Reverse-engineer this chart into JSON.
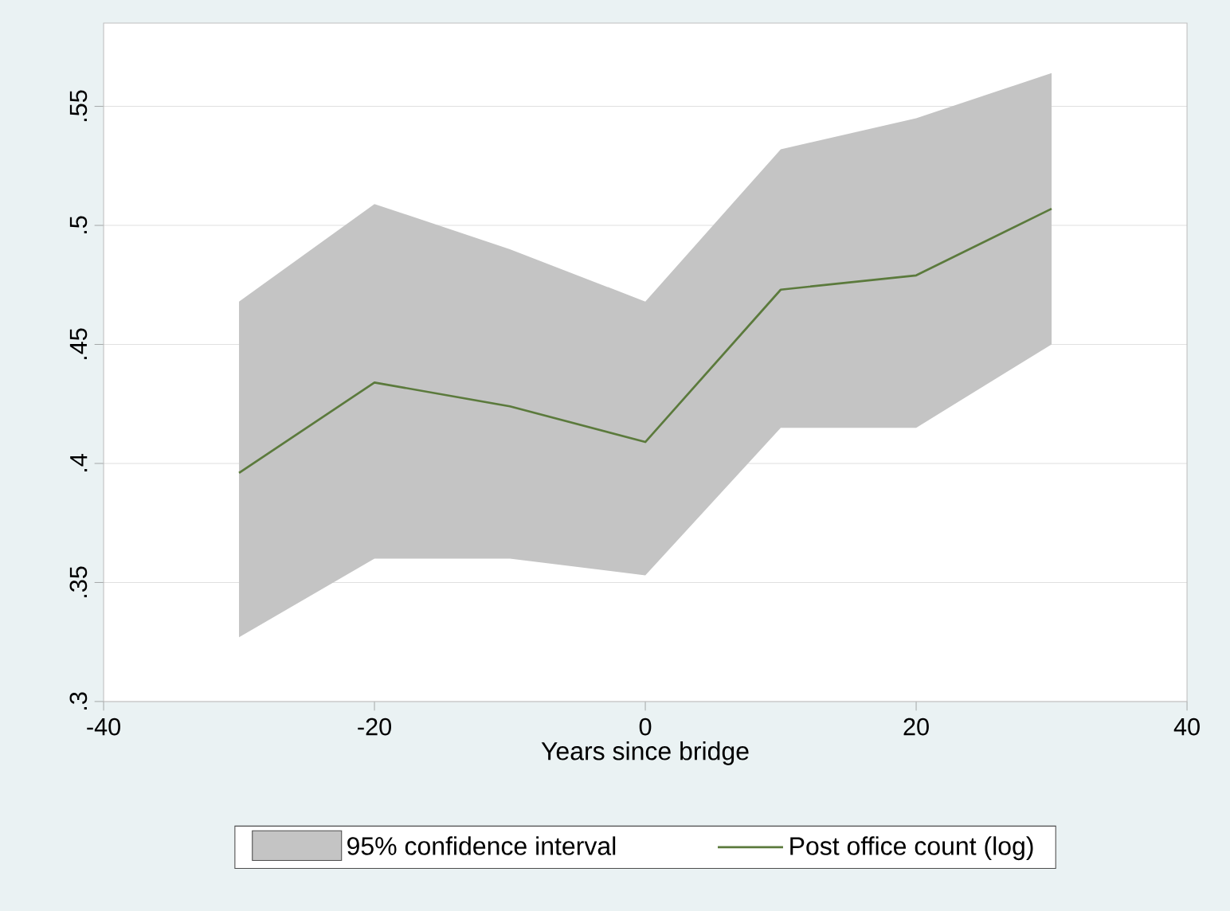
{
  "chart_data": {
    "type": "line",
    "xlabel": "Years since bridge",
    "annotations": [
      "95% confidence interval"
    ],
    "x": [
      -30,
      -20,
      -10,
      0,
      10,
      20,
      30
    ],
    "series": [
      {
        "name": "Post office count (log)",
        "color": "#5b7a3c",
        "values": [
          0.396,
          0.434,
          0.424,
          0.409,
          0.473,
          0.479,
          0.507
        ],
        "lower": [
          0.327,
          0.36,
          0.36,
          0.353,
          0.415,
          0.415,
          0.45
        ],
        "upper": [
          0.468,
          0.509,
          0.49,
          0.468,
          0.532,
          0.545,
          0.564
        ]
      }
    ],
    "xlim": [
      -40,
      40
    ],
    "ylim": [
      0.3,
      0.585
    ],
    "xticks": [
      -40,
      -20,
      0,
      20,
      40
    ],
    "yticks": [
      {
        "value": 0.3,
        "label": ".3"
      },
      {
        "value": 0.35,
        "label": ".35"
      },
      {
        "value": 0.4,
        "label": ".4"
      },
      {
        "value": 0.45,
        "label": ".45"
      },
      {
        "value": 0.5,
        "label": ".5"
      },
      {
        "value": 0.55,
        "label": ".55"
      }
    ],
    "grid": "y",
    "legend": "bottom",
    "marker": "none",
    "line_style": "solid"
  }
}
